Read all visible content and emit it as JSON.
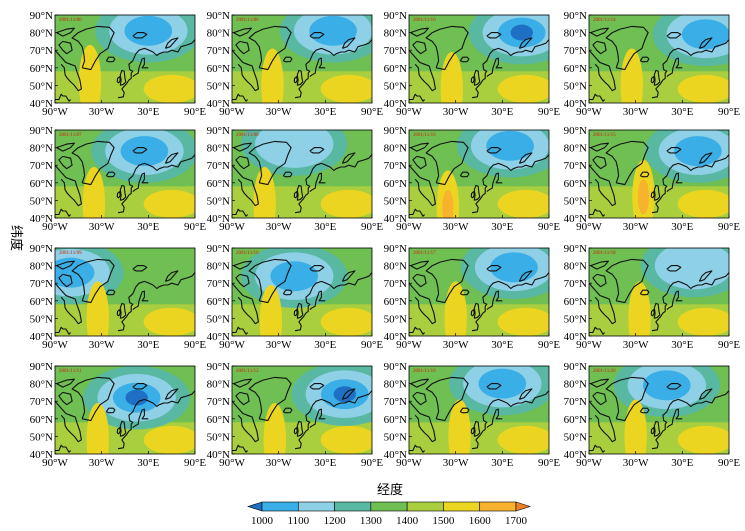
{
  "figure": {
    "type": "map-panel-grid",
    "rows": 4,
    "cols": 4,
    "xlabel": "经度",
    "ylabel": "纬度",
    "lat_ticks": [
      "90°N",
      "80°N",
      "70°N",
      "60°N",
      "50°N",
      "40°N"
    ],
    "lon_ticks": [
      "90°W",
      "30°W",
      "30°E",
      "90°E"
    ],
    "lat_range": [
      40,
      90
    ],
    "lon_range": [
      -90,
      90
    ]
  },
  "panels": [
    {
      "date": "2001/11/06",
      "low": {
        "lon": 30,
        "lat": 81,
        "val": 1080
      },
      "ridge": {
        "lon": -45,
        "lat": 52,
        "val": 1560
      }
    },
    {
      "date": "2001/11/06",
      "low": {
        "lon": 40,
        "lat": 81,
        "val": 1100
      },
      "ridge": {
        "lon": -38,
        "lat": 50,
        "val": 1560
      }
    },
    {
      "date": "2001/11/10",
      "low": {
        "lon": 55,
        "lat": 80,
        "val": 1000
      },
      "ridge": {
        "lon": -35,
        "lat": 48,
        "val": 1580
      }
    },
    {
      "date": "2001/11/14",
      "low": {
        "lon": 60,
        "lat": 79,
        "val": 1080
      },
      "ridge": {
        "lon": -35,
        "lat": 50,
        "val": 1540
      }
    },
    {
      "date": "2001/11/07",
      "low": {
        "lon": 25,
        "lat": 78,
        "val": 1100
      },
      "ridge": {
        "lon": -40,
        "lat": 48,
        "val": 1560
      }
    },
    {
      "date": "2001/11/08",
      "low": {
        "lon": -10,
        "lat": 82,
        "val": 1120
      },
      "ridge": {
        "lon": -48,
        "lat": 48,
        "val": 1560
      }
    },
    {
      "date": "2001/11/16",
      "low": {
        "lon": 40,
        "lat": 81,
        "val": 1060
      },
      "ridge": {
        "lon": -40,
        "lat": 46,
        "val": 1600
      }
    },
    {
      "date": "2001/11/15",
      "low": {
        "lon": 50,
        "lat": 78,
        "val": 1080
      },
      "ridge": {
        "lon": -20,
        "lat": 52,
        "val": 1600
      }
    },
    {
      "date": "2001/11/09",
      "low": {
        "lon": -70,
        "lat": 76,
        "val": 1040
      },
      "ridge": {
        "lon": -35,
        "lat": 50,
        "val": 1560
      }
    },
    {
      "date": "2001/11/10",
      "low": {
        "lon": -10,
        "lat": 74,
        "val": 1080
      },
      "ridge": {
        "lon": -40,
        "lat": 48,
        "val": 1580
      }
    },
    {
      "date": "2001/11/17",
      "low": {
        "lon": 45,
        "lat": 79,
        "val": 1100
      },
      "ridge": {
        "lon": -30,
        "lat": 50,
        "val": 1540
      }
    },
    {
      "date": "2001/11/18",
      "low": {
        "lon": 45,
        "lat": 80,
        "val": 1120
      },
      "ridge": {
        "lon": -25,
        "lat": 50,
        "val": 1540
      }
    },
    {
      "date": "2001/11/11",
      "low": {
        "lon": 15,
        "lat": 72,
        "val": 1000
      },
      "ridge": {
        "lon": -35,
        "lat": 48,
        "val": 1560
      }
    },
    {
      "date": "2001/11/12",
      "low": {
        "lon": 55,
        "lat": 74,
        "val": 1000
      },
      "ridge": {
        "lon": -35,
        "lat": 48,
        "val": 1560
      }
    },
    {
      "date": "2001/11/19",
      "low": {
        "lon": 30,
        "lat": 80,
        "val": 1100
      },
      "ridge": {
        "lon": -25,
        "lat": 50,
        "val": 1520
      }
    },
    {
      "date": "2001/11/20",
      "low": {
        "lon": 10,
        "lat": 79,
        "val": 1050
      },
      "ridge": {
        "lon": -30,
        "lat": 50,
        "val": 1560
      }
    }
  ],
  "colorbar": {
    "ticks": [
      "1000",
      "1100",
      "1200",
      "1300",
      "1400",
      "1500",
      "1600",
      "1700"
    ],
    "levels": [
      1000,
      1100,
      1200,
      1300,
      1400,
      1500,
      1600,
      1700
    ],
    "colors": [
      "#1f6fc4",
      "#3aaee6",
      "#8ed0e6",
      "#58b8a2",
      "#6fbf52",
      "#a9cf3e",
      "#ecd520",
      "#f7b22e",
      "#f07f2a"
    ]
  }
}
